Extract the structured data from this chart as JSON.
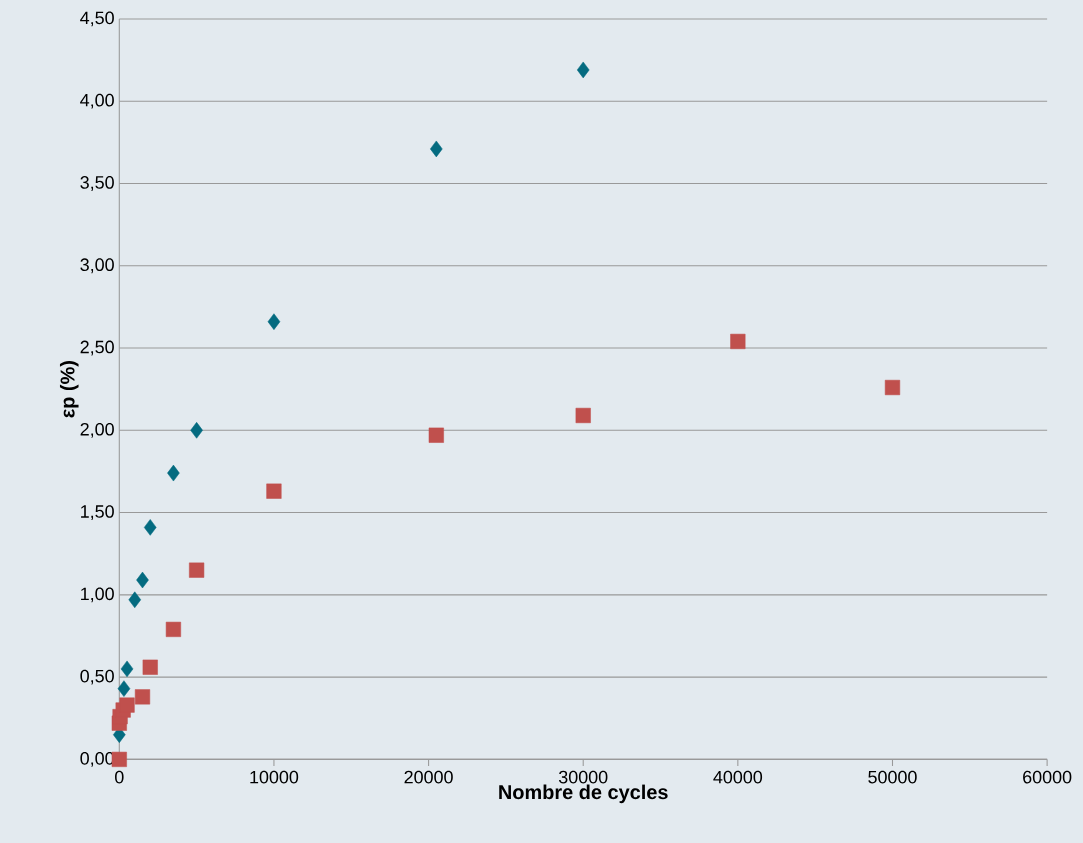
{
  "chart_data": {
    "type": "scatter",
    "xlabel": "Nombre de cycles",
    "ylabel": "εp (%)",
    "series": [
      {
        "color": "#046b80",
        "marker": "diamond",
        "x": [
          0,
          300,
          500,
          1000,
          1500,
          2000,
          3500,
          5000,
          10000,
          20500,
          30000
        ],
        "values": [
          0.15,
          0.43,
          0.55,
          0.97,
          1.09,
          1.41,
          1.74,
          2.0,
          2.66,
          3.71,
          4.19
        ]
      },
      {
        "color": "#c0504d",
        "marker": "square",
        "x": [
          0,
          0,
          50,
          250,
          500,
          1500,
          2000,
          3500,
          5000,
          10000,
          20500,
          30000,
          40000,
          50000
        ],
        "values": [
          0.0,
          0.22,
          0.26,
          0.3,
          0.33,
          0.38,
          0.56,
          0.79,
          1.15,
          1.63,
          1.97,
          2.09,
          2.54,
          2.26
        ]
      }
    ],
    "xlim": [
      0,
      60000
    ],
    "xticks": [
      0,
      10000,
      20000,
      30000,
      40000,
      50000,
      60000
    ],
    "ylim": [
      0,
      4.5
    ],
    "yticks": [
      {
        "value": 0,
        "label": "0,00"
      },
      {
        "value": 0.5,
        "label": "0,50"
      },
      {
        "value": 1,
        "label": "1,00"
      },
      {
        "value": 1.5,
        "label": "1,50"
      },
      {
        "value": 2,
        "label": "2,00"
      },
      {
        "value": 2.5,
        "label": "2,50"
      },
      {
        "value": 3,
        "label": "3,00"
      },
      {
        "value": 3.5,
        "label": "3,50"
      },
      {
        "value": 4,
        "label": "4,00"
      },
      {
        "value": 4.5,
        "label": "4,50"
      }
    ],
    "grid": "y"
  }
}
